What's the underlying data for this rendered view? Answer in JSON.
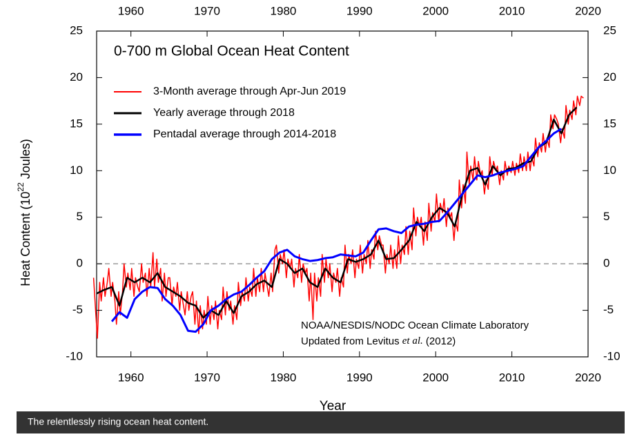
{
  "chart_data": {
    "type": "line",
    "title": "0-700 m Global Ocean Heat Content",
    "xlabel": "Year",
    "ylabel_parts": [
      "Heat Content (10",
      "22",
      " Joules)"
    ],
    "annotation_lines": [
      [
        "NOAA/NESDIS/NODC Ocean Climate Laboratory"
      ],
      [
        "Updated from Levitus ",
        "et al.",
        " (2012)"
      ]
    ],
    "xlim": [
      1955.5,
      2020
    ],
    "xticks": [
      1960,
      1970,
      1980,
      1990,
      2000,
      2010,
      2020
    ],
    "ylim": [
      -10,
      25
    ],
    "yticks": [
      -10,
      -5,
      0,
      5,
      10,
      15,
      20,
      25
    ],
    "reference_line": 0,
    "series": [
      {
        "name": "3-Month average through Apr-Jun 2019",
        "color": "#ff0000",
        "width": 1.5,
        "x": [
          1955.1,
          1955.4,
          1955.6,
          1955.9,
          1956.1,
          1956.4,
          1956.6,
          1956.9,
          1957.1,
          1957.4,
          1957.6,
          1957.9,
          1958.1,
          1958.4,
          1958.6,
          1958.9,
          1959.1,
          1959.4,
          1959.6,
          1959.9,
          1960.1,
          1960.4,
          1960.6,
          1960.9,
          1961.1,
          1961.4,
          1961.6,
          1961.9,
          1962.1,
          1962.4,
          1962.6,
          1962.9,
          1963.1,
          1963.4,
          1963.6,
          1963.9,
          1964.1,
          1964.4,
          1964.6,
          1964.9,
          1965.1,
          1965.4,
          1965.6,
          1965.9,
          1966.1,
          1966.4,
          1966.6,
          1966.9,
          1967.1,
          1967.4,
          1967.6,
          1967.9,
          1968.1,
          1968.4,
          1968.6,
          1968.9,
          1969.1,
          1969.4,
          1969.6,
          1969.9,
          1970.1,
          1970.4,
          1970.6,
          1970.9,
          1971.1,
          1971.4,
          1971.6,
          1971.9,
          1972.1,
          1972.4,
          1972.6,
          1972.9,
          1973.1,
          1973.4,
          1973.6,
          1973.9,
          1974.1,
          1974.4,
          1974.6,
          1974.9,
          1975.1,
          1975.4,
          1975.6,
          1975.9,
          1976.1,
          1976.4,
          1976.6,
          1976.9,
          1977.1,
          1977.4,
          1977.6,
          1977.9,
          1978.1,
          1978.4,
          1978.6,
          1978.9,
          1979.1,
          1979.4,
          1979.6,
          1979.9,
          1980.1,
          1980.4,
          1980.6,
          1980.9,
          1981.1,
          1981.4,
          1981.6,
          1981.9,
          1982.1,
          1982.4,
          1982.6,
          1982.9,
          1983.1,
          1983.4,
          1983.6,
          1983.9,
          1984.1,
          1984.4,
          1984.6,
          1984.9,
          1985.1,
          1985.4,
          1985.6,
          1985.9,
          1986.1,
          1986.4,
          1986.6,
          1986.9,
          1987.1,
          1987.4,
          1987.6,
          1987.9,
          1988.1,
          1988.4,
          1988.6,
          1988.9,
          1989.1,
          1989.4,
          1989.6,
          1989.9,
          1990.1,
          1990.4,
          1990.6,
          1990.9,
          1991.1,
          1991.4,
          1991.6,
          1991.9,
          1992.1,
          1992.4,
          1992.6,
          1992.9,
          1993.1,
          1993.4,
          1993.6,
          1993.9,
          1994.1,
          1994.4,
          1994.6,
          1994.9,
          1995.1,
          1995.4,
          1995.6,
          1995.9,
          1996.1,
          1996.4,
          1996.6,
          1996.9,
          1997.1,
          1997.4,
          1997.6,
          1997.9,
          1998.1,
          1998.4,
          1998.6,
          1998.9,
          1999.1,
          1999.4,
          1999.6,
          1999.9,
          2000.1,
          2000.4,
          2000.6,
          2000.9,
          2001.1,
          2001.4,
          2001.6,
          2001.9,
          2002.1,
          2002.4,
          2002.6,
          2002.9,
          2003.1,
          2003.4,
          2003.6,
          2003.9,
          2004.1,
          2004.4,
          2004.6,
          2004.9,
          2005.1,
          2005.4,
          2005.6,
          2005.9,
          2006.1,
          2006.4,
          2006.6,
          2006.9,
          2007.1,
          2007.4,
          2007.6,
          2007.9,
          2008.1,
          2008.4,
          2008.6,
          2008.9,
          2009.1,
          2009.4,
          2009.6,
          2009.9,
          2010.1,
          2010.4,
          2010.6,
          2010.9,
          2011.1,
          2011.4,
          2011.6,
          2011.9,
          2012.1,
          2012.4,
          2012.6,
          2012.9,
          2013.1,
          2013.4,
          2013.6,
          2013.9,
          2014.1,
          2014.4,
          2014.6,
          2014.9,
          2015.1,
          2015.4,
          2015.6,
          2015.9,
          2016.1,
          2016.4,
          2016.6,
          2016.9,
          2017.1,
          2017.4,
          2017.6,
          2017.9,
          2018.1,
          2018.4,
          2018.6,
          2018.9,
          2019.1,
          2019.4
        ],
        "values": [
          -1.5,
          -5.5,
          -8.0,
          -2.0,
          -4.0,
          -1.5,
          -3.5,
          -2.0,
          -0.5,
          -3.5,
          -2.0,
          -4.0,
          -6.5,
          -3.0,
          -5.5,
          -3.0,
          0.0,
          -2.5,
          -1.0,
          -2.8,
          -0.5,
          -3.5,
          -1.5,
          -2.5,
          -3.0,
          0.0,
          -2.0,
          -1.0,
          -3.5,
          -0.5,
          -2.5,
          1.2,
          -2.5,
          0.5,
          -2.0,
          -0.5,
          -4.0,
          -1.0,
          -3.5,
          -1.5,
          -1.5,
          -4.5,
          -2.5,
          -3.5,
          -2.0,
          -5.0,
          -3.0,
          -4.5,
          -5.5,
          -3.0,
          -5.0,
          -3.5,
          -3.0,
          -6.5,
          -4.0,
          -7.5,
          -4.5,
          -7.0,
          -5.0,
          -6.5,
          -3.5,
          -6.5,
          -4.5,
          -6.0,
          -4.0,
          -7.0,
          -5.0,
          -6.0,
          -2.5,
          -5.5,
          -3.0,
          -5.0,
          -4.0,
          -6.5,
          -4.5,
          -6.0,
          -2.0,
          -4.5,
          -3.0,
          -4.0,
          -1.5,
          -4.0,
          -2.5,
          -3.5,
          -0.5,
          -3.5,
          -1.5,
          -3.0,
          -0.5,
          -3.0,
          -1.0,
          -2.5,
          -3.5,
          -1.0,
          -3.0,
          1.5,
          2.0,
          -1.0,
          1.0,
          0.0,
          1.5,
          -1.5,
          0.5,
          -0.5,
          0.5,
          -2.5,
          -0.5,
          -1.5,
          1.0,
          -2.0,
          0.0,
          -1.0,
          -0.5,
          -4.0,
          -1.0,
          -6.0,
          -1.0,
          -4.0,
          -1.5,
          -3.5,
          1.0,
          -2.0,
          0.5,
          -1.5,
          0.0,
          -3.0,
          -1.0,
          -2.0,
          -0.5,
          -3.5,
          -1.5,
          -2.5,
          2.0,
          -1.0,
          1.0,
          0.0,
          1.5,
          -1.5,
          0.5,
          -0.5,
          2.0,
          -1.0,
          1.0,
          0.0,
          2.5,
          -0.5,
          1.5,
          0.5,
          3.5,
          1.5,
          3.0,
          2.0,
          2.0,
          -1.0,
          1.0,
          0.0,
          2.0,
          -0.5,
          1.5,
          -0.5,
          3.0,
          0.0,
          2.0,
          1.0,
          4.0,
          1.0,
          3.5,
          1.5,
          6.0,
          3.0,
          5.0,
          4.0,
          5.0,
          2.0,
          4.5,
          2.5,
          6.5,
          3.5,
          5.5,
          4.5,
          7.5,
          4.5,
          6.5,
          5.5,
          7.0,
          4.0,
          6.0,
          5.0,
          5.5,
          2.5,
          4.5,
          3.5,
          9.0,
          6.0,
          8.5,
          6.5,
          12.0,
          8.5,
          10.5,
          9.0,
          11.5,
          9.0,
          11.0,
          9.5,
          10.0,
          7.5,
          9.0,
          8.0,
          11.5,
          9.5,
          11.0,
          10.0,
          10.5,
          8.5,
          10.0,
          9.0,
          11.0,
          9.5,
          10.5,
          9.8,
          11.0,
          9.5,
          10.8,
          9.8,
          11.8,
          10.0,
          11.5,
          10.0,
          12.0,
          10.0,
          11.5,
          10.5,
          13.5,
          11.5,
          13.0,
          12.0,
          14.0,
          12.0,
          13.5,
          12.5,
          16.0,
          14.5,
          16.0,
          15.5,
          15.0,
          13.0,
          14.5,
          13.5,
          17.0,
          15.0,
          16.5,
          15.5,
          17.5,
          16.0,
          18.0,
          17.0,
          18.0,
          17.8
        ]
      },
      {
        "name": "Yearly average through 2018",
        "color": "#000000",
        "width": 2.5,
        "x": [
          1955.5,
          1956.5,
          1957.5,
          1958.5,
          1959.5,
          1960.5,
          1961.5,
          1962.5,
          1963.5,
          1964.5,
          1965.5,
          1966.5,
          1967.5,
          1968.5,
          1969.5,
          1970.5,
          1971.5,
          1972.5,
          1973.5,
          1974.5,
          1975.5,
          1976.5,
          1977.5,
          1978.5,
          1979.5,
          1980.5,
          1981.5,
          1982.5,
          1983.5,
          1984.5,
          1985.5,
          1986.5,
          1987.5,
          1988.5,
          1989.5,
          1990.5,
          1991.5,
          1992.5,
          1993.5,
          1994.5,
          1995.5,
          1996.5,
          1997.5,
          1998.5,
          1999.5,
          2000.5,
          2001.5,
          2002.5,
          2003.5,
          2004.5,
          2005.5,
          2006.5,
          2007.5,
          2008.5,
          2009.5,
          2010.5,
          2011.5,
          2012.5,
          2013.5,
          2014.5,
          2015.5,
          2016.5,
          2017.5,
          2018.5
        ],
        "values": [
          -3.2,
          -2.8,
          -2.5,
          -4.5,
          -1.5,
          -2.0,
          -1.5,
          -2.0,
          -1.0,
          -2.5,
          -3.0,
          -3.5,
          -4.2,
          -4.5,
          -5.8,
          -5.0,
          -5.5,
          -4.0,
          -5.3,
          -3.5,
          -3.0,
          -2.2,
          -1.8,
          -2.5,
          0.5,
          0.0,
          -1.0,
          -0.5,
          -2.0,
          -2.5,
          -0.5,
          -1.5,
          -2.0,
          0.5,
          0.2,
          0.5,
          1.0,
          2.5,
          0.5,
          0.6,
          1.5,
          2.5,
          4.5,
          3.5,
          5.0,
          6.0,
          5.5,
          4.0,
          7.5,
          10.0,
          10.3,
          8.5,
          10.5,
          9.5,
          10.2,
          10.3,
          10.8,
          11.0,
          12.5,
          13.0,
          15.5,
          14.0,
          16.0,
          16.8
        ]
      },
      {
        "name": "Pentadal average through 2014-2018",
        "color": "#0000ff",
        "width": 3,
        "x": [
          1957.5,
          1958.5,
          1959.5,
          1960.5,
          1961.5,
          1962.5,
          1963.5,
          1964.5,
          1965.5,
          1966.5,
          1967.5,
          1968.5,
          1969.5,
          1970.5,
          1971.5,
          1972.5,
          1973.5,
          1974.5,
          1975.5,
          1976.5,
          1977.5,
          1978.5,
          1979.5,
          1980.5,
          1981.5,
          1982.5,
          1983.5,
          1984.5,
          1985.5,
          1986.5,
          1987.5,
          1988.5,
          1989.5,
          1990.5,
          1991.5,
          1992.5,
          1993.5,
          1994.5,
          1995.5,
          1996.5,
          1997.5,
          1998.5,
          1999.5,
          2000.5,
          2001.5,
          2002.5,
          2003.5,
          2004.5,
          2005.5,
          2006.5,
          2007.5,
          2008.5,
          2009.5,
          2010.5,
          2011.5,
          2012.5,
          2013.5,
          2014.5,
          2015.5,
          2016.5
        ],
        "values": [
          -6.2,
          -5.2,
          -5.8,
          -3.8,
          -3.0,
          -2.5,
          -2.6,
          -3.8,
          -4.5,
          -5.5,
          -7.2,
          -7.3,
          -6.5,
          -5.0,
          -4.5,
          -3.8,
          -3.3,
          -3.0,
          -2.3,
          -1.5,
          -0.8,
          0.5,
          1.2,
          1.5,
          0.8,
          0.5,
          0.3,
          0.4,
          0.6,
          0.7,
          1.0,
          0.9,
          0.8,
          1.2,
          2.5,
          3.7,
          3.8,
          3.5,
          3.3,
          4.0,
          4.2,
          4.3,
          4.5,
          4.6,
          5.5,
          6.5,
          7.5,
          8.5,
          9.5,
          9.3,
          9.5,
          9.8,
          10.0,
          10.2,
          10.5,
          11.5,
          12.5,
          13.2,
          14.0,
          14.5
        ]
      }
    ]
  },
  "caption": "The relentlessly rising ocean heat content."
}
